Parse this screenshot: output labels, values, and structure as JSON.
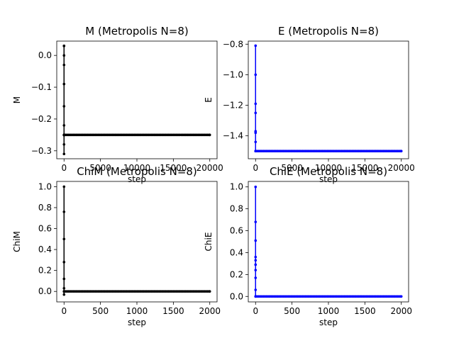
{
  "chart_data": [
    {
      "type": "line",
      "title": "M (Metropolis N=8)",
      "xlabel": "step",
      "ylabel": "M",
      "xlim": [
        -1000,
        21000
      ],
      "ylim": [
        -0.325,
        0.045
      ],
      "xticks": [
        0,
        5000,
        10000,
        15000,
        20000
      ],
      "yticks": [
        0.0,
        -0.1,
        -0.2,
        -0.3
      ],
      "xtick_labels": [
        "0",
        "5000",
        "10000",
        "15000",
        "20000"
      ],
      "ytick_labels": [
        "0.0",
        "−0.1",
        "−0.2",
        "−0.3"
      ],
      "color": "#000000",
      "series": [
        {
          "x": [
            0,
            0,
            0,
            0,
            0,
            0,
            0,
            0,
            0,
            0,
            0,
            0,
            0,
            0,
            0,
            0,
            0,
            0,
            0,
            0,
            0,
            0,
            0,
            0,
            20000
          ],
          "y": [
            0.03,
            0.0,
            -0.03,
            -0.09,
            -0.16,
            -0.22,
            -0.28,
            -0.31,
            0.03,
            -0.25,
            -0.25,
            -0.25,
            -0.25,
            -0.25,
            -0.25,
            -0.25,
            -0.25,
            -0.25,
            -0.25,
            -0.25,
            -0.25,
            -0.25,
            -0.25,
            -0.25,
            -0.25
          ]
        }
      ]
    },
    {
      "type": "line",
      "title": "E (Metropolis N=8)",
      "xlabel": "step",
      "ylabel": "E",
      "xlim": [
        -1000,
        21000
      ],
      "ylim": [
        -1.55,
        -0.78
      ],
      "xticks": [
        0,
        5000,
        10000,
        15000,
        20000
      ],
      "yticks": [
        -0.8,
        -1.0,
        -1.2,
        -1.4
      ],
      "xtick_labels": [
        "0",
        "5000",
        "10000",
        "15000",
        "20000"
      ],
      "ytick_labels": [
        "−0.8",
        "−1.0",
        "−1.2",
        "−1.4"
      ],
      "color": "#0000ff",
      "series": [
        {
          "x": [
            0,
            0,
            0,
            0,
            0,
            0,
            0,
            0,
            0,
            20000
          ],
          "y": [
            -0.81,
            -1.0,
            -1.19,
            -1.25,
            -1.37,
            -1.38,
            -1.44,
            -1.5,
            -1.5,
            -1.5
          ]
        }
      ]
    },
    {
      "type": "line",
      "title": "ChiM (Metropolis N=8)",
      "xlabel": "step",
      "ylabel": "ChiM",
      "xlim": [
        -100,
        2100
      ],
      "ylim": [
        -0.1,
        1.05
      ],
      "xticks": [
        0,
        500,
        1000,
        1500,
        2000
      ],
      "yticks": [
        0.0,
        0.2,
        0.4,
        0.6,
        0.8,
        1.0
      ],
      "xtick_labels": [
        "0",
        "500",
        "1000",
        "1500",
        "2000"
      ],
      "ytick_labels": [
        "0.0",
        "0.2",
        "0.4",
        "0.6",
        "0.8",
        "1.0"
      ],
      "color": "#000000",
      "series": [
        {
          "x": [
            0,
            0,
            0,
            0,
            0,
            0,
            0,
            0,
            0,
            2000
          ],
          "y": [
            1.0,
            0.76,
            0.5,
            0.28,
            0.12,
            0.03,
            -0.03,
            0.0,
            0.0,
            0.0
          ]
        }
      ]
    },
    {
      "type": "line",
      "title": "ChiE (Metropolis N=8)",
      "xlabel": "step",
      "ylabel": "ChiE",
      "xlim": [
        -100,
        2100
      ],
      "ylim": [
        -0.05,
        1.05
      ],
      "xticks": [
        0,
        500,
        1000,
        1500,
        2000
      ],
      "yticks": [
        0.0,
        0.2,
        0.4,
        0.6,
        0.8,
        1.0
      ],
      "xtick_labels": [
        "0",
        "500",
        "1000",
        "1500",
        "2000"
      ],
      "ytick_labels": [
        "0.0",
        "0.2",
        "0.4",
        "0.6",
        "0.8",
        "1.0"
      ],
      "color": "#0000ff",
      "series": [
        {
          "x": [
            0,
            0,
            0,
            0,
            0,
            0,
            0,
            0,
            0,
            0,
            0,
            2000
          ],
          "y": [
            1.0,
            0.68,
            0.51,
            0.36,
            0.33,
            0.29,
            0.24,
            0.17,
            0.06,
            0.0,
            0.0,
            0.0
          ]
        }
      ]
    }
  ]
}
